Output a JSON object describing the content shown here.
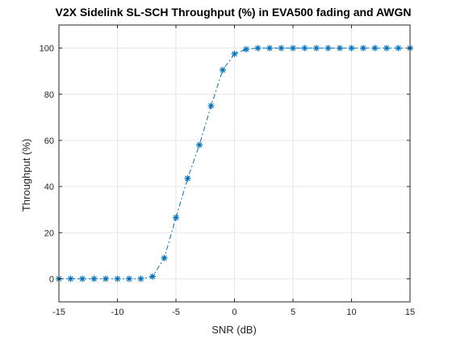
{
  "chart_data": {
    "type": "line",
    "title": "V2X Sidelink SL-SCH Throughput (%) in EVA500 fading and AWGN",
    "xlabel": "SNR (dB)",
    "ylabel": "Throughput (%)",
    "xlim": [
      -15,
      15
    ],
    "ylim": [
      -10,
      110
    ],
    "grid": true,
    "line_style": "dash-dot",
    "marker": "asterisk",
    "colors": {
      "series": "#0072BD",
      "grid": "#e6e6e6",
      "axis": "#262626"
    },
    "x_tick_labels": [
      "-15",
      "-10",
      "-5",
      "0",
      "5",
      "10",
      "15"
    ],
    "y_tick_labels": [
      "0",
      "20",
      "40",
      "60",
      "80",
      "100"
    ],
    "x_ticks": [
      -15,
      -10,
      -5,
      0,
      5,
      10,
      15
    ],
    "y_ticks": [
      0,
      20,
      40,
      60,
      80,
      100
    ],
    "series": [
      {
        "x": [
          -15,
          -14,
          -13,
          -12,
          -11,
          -10,
          -9,
          -8,
          -7,
          -6,
          -5,
          -4,
          -3,
          -2,
          -1,
          0,
          1,
          2,
          3,
          4,
          5,
          6,
          7,
          8,
          9,
          10,
          11,
          12,
          13,
          14,
          15
        ],
        "values": [
          0,
          0,
          0,
          0,
          0,
          0,
          0,
          0,
          1,
          9,
          26.5,
          43.5,
          58,
          75,
          90.5,
          97.5,
          99.5,
          100,
          100,
          100,
          100,
          100,
          100,
          100,
          100,
          100,
          100,
          100,
          100,
          100,
          100
        ]
      }
    ]
  }
}
